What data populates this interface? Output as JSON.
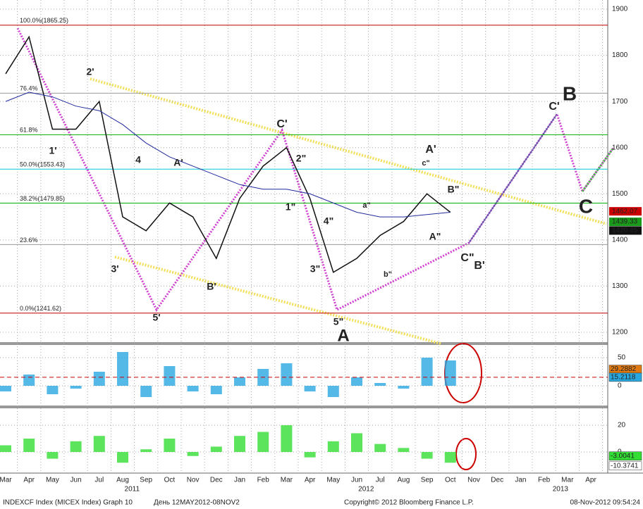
{
  "chart_data": {
    "type": "line",
    "categories": [
      "Mar",
      "Apr",
      "May",
      "Jun",
      "Jul",
      "Aug",
      "Sep",
      "Oct",
      "Nov",
      "Dec",
      "Jan",
      "Feb",
      "Mar",
      "Apr",
      "May",
      "Jun",
      "Jul",
      "Aug",
      "Sep",
      "Oct",
      "Nov",
      "Dec",
      "Jan",
      "Feb",
      "Mar",
      "Apr"
    ],
    "years": [
      "2011",
      "2012",
      "2013"
    ],
    "series": [
      {
        "color": "#111111",
        "values": [
          1760,
          1840,
          1640,
          1640,
          1700,
          1450,
          1420,
          1480,
          1450,
          1360,
          1490,
          1560,
          1600,
          1490,
          1330,
          1360,
          1410,
          1440,
          1500,
          1460,
          null,
          null,
          null,
          null,
          null,
          null
        ]
      },
      {
        "color": "#1f2a9c",
        "values": [
          1700,
          1720,
          1710,
          1690,
          1680,
          1650,
          1610,
          1580,
          1560,
          1540,
          1520,
          1510,
          1510,
          1500,
          1480,
          1460,
          1450,
          1450,
          1455,
          1460,
          null,
          null,
          null,
          null,
          null,
          null
        ]
      }
    ],
    "ylim": [
      1200,
      1900
    ],
    "yticks": [
      1200,
      1300,
      1400,
      1500,
      1600,
      1700,
      1800,
      1900
    ],
    "grid": true,
    "fib_levels": [
      {
        "label": "100.0%(1865.25)",
        "value": 1865.25,
        "color": "#c00000"
      },
      {
        "label": "76.4%",
        "value": 1718,
        "color": "#999999"
      },
      {
        "label": "61.8%",
        "value": 1628,
        "color": "#00b000"
      },
      {
        "label": "50.0%(1553.43)",
        "value": 1553.43,
        "color": "#00c8d8"
      },
      {
        "label": "38.2%(1479.85)",
        "value": 1479.85,
        "color": "#00b000"
      },
      {
        "label": "23.6%",
        "value": 1390,
        "color": "#999999"
      },
      {
        "label": "0.0%(1241.62)",
        "value": 1241.62,
        "color": "#c00000"
      }
    ],
    "price_tags": [
      {
        "value": 1462.07,
        "color": "#cc0000"
      },
      {
        "value": 1439.33,
        "color": "#1a9a1a"
      },
      {
        "value": 1420.45,
        "color": "#111111"
      }
    ],
    "wave_labels": [
      "1'",
      "2'",
      "3'",
      "4",
      "5'",
      "A'",
      "B'",
      "C'",
      "1\"",
      "2\"",
      "3\"",
      "4\"",
      "5\"",
      "A",
      "a\"",
      "b\"",
      "c\"",
      "A'",
      "B\"",
      "A\"",
      "C\"",
      "B'",
      "C'",
      "B",
      "C"
    ],
    "indicators": [
      {
        "ylim": [
          -35,
          72.5
        ],
        "yticks": [
          0,
          50
        ],
        "color": "#29a8e0",
        "values": [
          -10,
          20,
          -15,
          -5,
          25,
          60,
          -20,
          35,
          -10,
          -15,
          15,
          30,
          40,
          -10,
          -20,
          15,
          5,
          -5,
          50,
          45,
          null,
          null,
          null,
          null,
          null,
          null
        ],
        "tags": [
          {
            "value": 29.2882,
            "color": "#e07a10"
          },
          {
            "value": 15.2118,
            "color": "#29a8e0"
          }
        ]
      },
      {
        "ylim": [
          -14.7,
          32.6
        ],
        "yticks": [
          0,
          20
        ],
        "color": "#33dd33",
        "values": [
          5,
          10,
          -5,
          8,
          12,
          -8,
          2,
          10,
          -3,
          4,
          12,
          15,
          20,
          -4,
          8,
          14,
          6,
          3,
          -5,
          -8,
          null,
          null,
          null,
          null,
          null,
          null
        ],
        "tags": [
          {
            "value": -3.0041,
            "color": "#33dd33"
          },
          {
            "value": -10.3741,
            "color": "#ffffff"
          }
        ]
      }
    ]
  },
  "footer": {
    "left": "INDEXCF Index (MICEX Index) Graph 10",
    "range": "День 12MAY2012-08NOV2",
    "copyright": "Copyright© 2012 Bloomberg Finance L.P.",
    "timestamp": "08-Nov-2012 09:54:24"
  }
}
